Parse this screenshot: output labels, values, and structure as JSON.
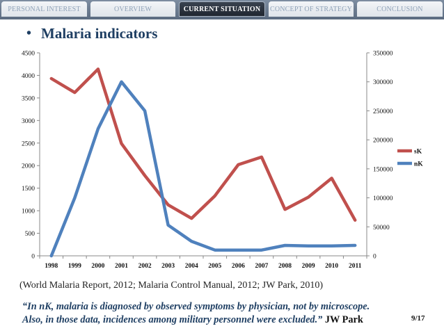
{
  "tabs": [
    {
      "label": "PERSONAL INTEREST",
      "active": false
    },
    {
      "label": "OVERVIEW",
      "active": false
    },
    {
      "label": "CURRENT SITUATION",
      "active": true
    },
    {
      "label": "CONCEPT OF STRATEGY",
      "active": false
    },
    {
      "label": "CONCLUSION",
      "active": false
    }
  ],
  "heading": {
    "bullet": "•",
    "text": "Malaria indicators"
  },
  "chart_data": {
    "type": "line",
    "x": [
      "1998",
      "1999",
      "2000",
      "2001",
      "2002",
      "2003",
      "2004",
      "2005",
      "2006",
      "2007",
      "2008",
      "2009",
      "2010",
      "2011"
    ],
    "y_left": {
      "ylim": [
        0,
        4500
      ],
      "ticks": [
        "0",
        "500",
        "1000",
        "1500",
        "2000",
        "2500",
        "3000",
        "3500",
        "4000",
        "4500"
      ]
    },
    "y_right": {
      "ylim": [
        0,
        350000
      ],
      "ticks": [
        "0",
        "50000",
        "100000",
        "150000",
        "200000",
        "250000",
        "300000",
        "350000"
      ]
    },
    "series": [
      {
        "name": "sK",
        "axis": "left",
        "color": "#c0504d",
        "values": [
          3930,
          3620,
          4140,
          2490,
          1780,
          1130,
          830,
          1330,
          2020,
          2190,
          1030,
          1300,
          1720,
          790
        ]
      },
      {
        "name": "nK",
        "axis": "right",
        "color": "#4f81bd",
        "values": [
          0,
          100000,
          219000,
          300000,
          250000,
          53000,
          25000,
          10000,
          10000,
          10000,
          18000,
          17000,
          17000,
          18000
        ]
      }
    ],
    "grid": false,
    "legend_position": "right"
  },
  "source": "(World Malaria Report, 2012; Malaria Control Manual, 2012; JW Park, 2010)",
  "quote": {
    "line1": "“In nK, malaria is diagnosed by observed symptoms by physician, not by microscope.",
    "line2": "Also, in those data, incidences among military personnel were excluded.”",
    "author": " JW Park"
  },
  "page_number": "9/17"
}
